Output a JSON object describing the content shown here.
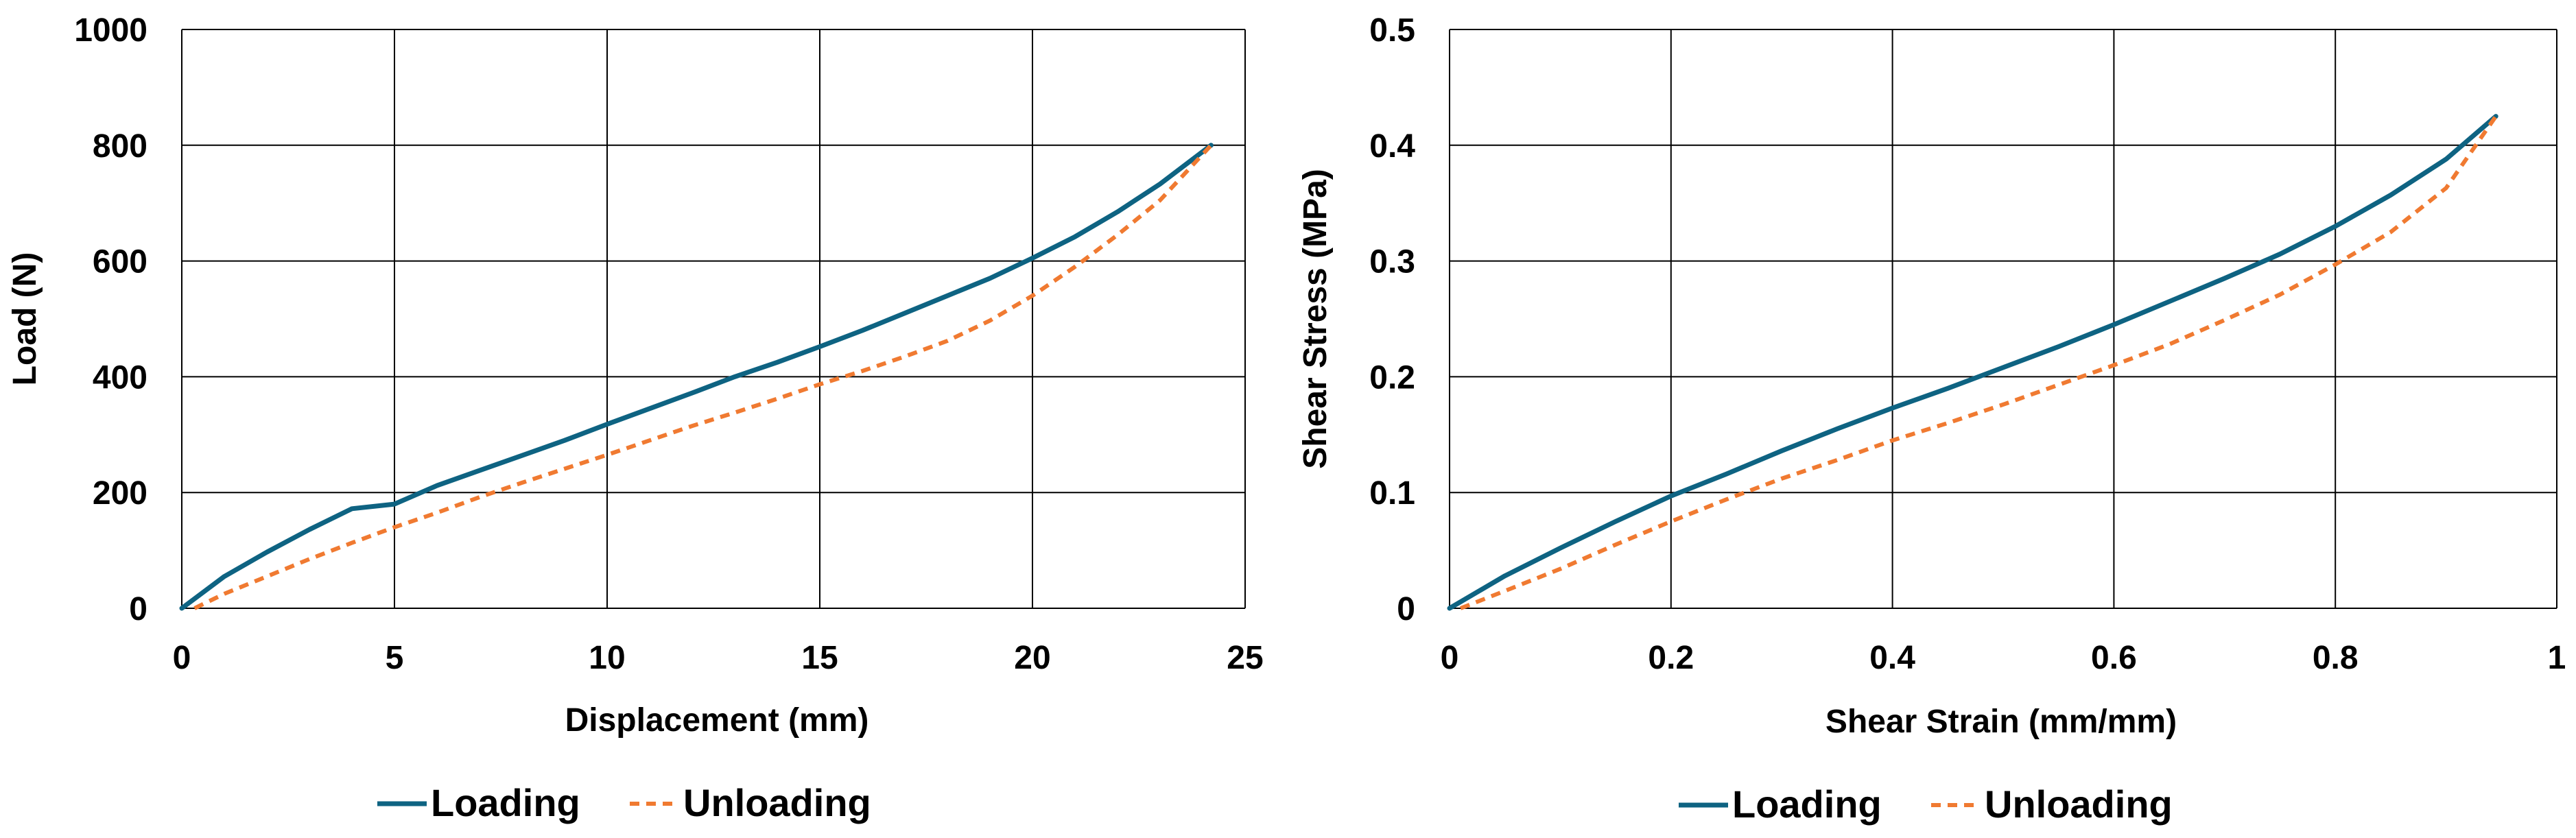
{
  "colors": {
    "loading": "#0E6382",
    "unloading": "#F07A31",
    "grid": "#000000",
    "text": "#000000"
  },
  "chart_data": [
    {
      "type": "line",
      "xlabel": "Displacement (mm)",
      "ylabel": "Load (N)",
      "xlim": [
        0,
        25
      ],
      "ylim": [
        0,
        1000
      ],
      "xticks": [
        0,
        5,
        10,
        15,
        20,
        25
      ],
      "yticks": [
        0,
        200,
        400,
        600,
        800,
        1000
      ],
      "xtick_labels": [
        "0",
        "5",
        "10",
        "15",
        "20",
        "25"
      ],
      "ytick_labels": [
        "0",
        "200",
        "400",
        "600",
        "800",
        "1000"
      ],
      "grid": true,
      "legend_position": "bottom",
      "series": [
        {
          "name": "Loading",
          "style": "solid",
          "x": [
            0,
            1,
            2,
            3,
            4,
            5,
            6,
            7,
            8,
            9,
            10,
            11,
            12,
            13,
            14,
            15,
            16,
            17,
            18,
            19,
            20,
            21,
            22,
            23,
            24.2
          ],
          "y": [
            0,
            55,
            97,
            136,
            172,
            180,
            212,
            238,
            264,
            290,
            318,
            345,
            372,
            400,
            425,
            452,
            480,
            510,
            540,
            570,
            605,
            642,
            685,
            733,
            800
          ]
        },
        {
          "name": "Unloading",
          "style": "dashed",
          "x": [
            0.3,
            1,
            2,
            3,
            4,
            5,
            6,
            7,
            8,
            9,
            10,
            11,
            12,
            13,
            14,
            15,
            16,
            17,
            18,
            19,
            20,
            21,
            22,
            23,
            24.2
          ],
          "y": [
            0,
            25,
            55,
            85,
            113,
            140,
            165,
            192,
            217,
            241,
            265,
            290,
            315,
            338,
            362,
            387,
            410,
            435,
            462,
            497,
            540,
            590,
            645,
            705,
            800
          ]
        }
      ]
    },
    {
      "type": "line",
      "xlabel": "Shear Strain (mm/mm)",
      "ylabel": "Shear Stress (MPa)",
      "xlim": [
        0,
        1
      ],
      "ylim": [
        0,
        0.5
      ],
      "xticks": [
        0,
        0.2,
        0.4,
        0.6,
        0.8,
        1
      ],
      "yticks": [
        0,
        0.1,
        0.2,
        0.3,
        0.4,
        0.5
      ],
      "xtick_labels": [
        "0",
        "0.2",
        "0.4",
        "0.6",
        "0.8",
        "1"
      ],
      "ytick_labels": [
        "0",
        "0.1",
        "0.2",
        "0.3",
        "0.4",
        "0.5"
      ],
      "grid": true,
      "legend_position": "bottom",
      "series": [
        {
          "name": "Loading",
          "style": "solid",
          "x": [
            0,
            0.05,
            0.1,
            0.15,
            0.2,
            0.25,
            0.3,
            0.35,
            0.4,
            0.45,
            0.5,
            0.55,
            0.6,
            0.65,
            0.7,
            0.75,
            0.8,
            0.85,
            0.9,
            0.945
          ],
          "y": [
            0,
            0.028,
            0.052,
            0.075,
            0.097,
            0.116,
            0.136,
            0.155,
            0.173,
            0.19,
            0.208,
            0.226,
            0.245,
            0.265,
            0.285,
            0.306,
            0.33,
            0.357,
            0.388,
            0.425
          ]
        },
        {
          "name": "Unloading",
          "style": "dashed",
          "x": [
            0.01,
            0.05,
            0.1,
            0.15,
            0.2,
            0.25,
            0.3,
            0.35,
            0.4,
            0.45,
            0.5,
            0.55,
            0.6,
            0.65,
            0.7,
            0.75,
            0.8,
            0.85,
            0.9,
            0.945
          ],
          "y": [
            0,
            0.015,
            0.034,
            0.055,
            0.075,
            0.094,
            0.112,
            0.128,
            0.145,
            0.16,
            0.176,
            0.193,
            0.21,
            0.228,
            0.249,
            0.271,
            0.297,
            0.325,
            0.363,
            0.425
          ]
        }
      ]
    }
  ]
}
